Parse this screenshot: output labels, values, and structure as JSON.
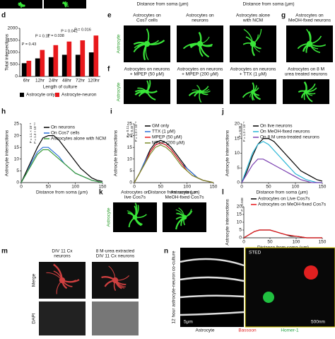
{
  "top_strip": {
    "x_labels": [
      "Distance from soma (μm)",
      "Distance from soma (μm)"
    ]
  },
  "chart_data": [
    {
      "type": "bar",
      "panel_label": "d",
      "ylabel": "Total intersections",
      "xlabel": "Length of culture",
      "categories": [
        "6hr",
        "12hr",
        "24hr",
        "48hr",
        "72hr",
        "120hr"
      ],
      "series": [
        {
          "name": "Astrocyte only",
          "color": "#000000",
          "values": [
            550,
            750,
            800,
            900,
            900,
            1000
          ]
        },
        {
          "name": "Astrocyte-neuron",
          "color": "#e8191c",
          "values": [
            650,
            1100,
            1300,
            1450,
            1500,
            1700
          ]
        }
      ],
      "ylim": [
        0,
        2000
      ],
      "yticks": [
        0,
        500,
        1000,
        1500,
        2000
      ],
      "annotations": [
        "P = 0.43",
        "P = 0.11",
        "P = 0.038",
        "P = 0.042",
        "P = 0.016"
      ]
    },
    {
      "type": "line",
      "panel_label": "h",
      "ylabel": "Astrocyte intersections",
      "xlabel": "Distance from soma (μm)",
      "x": [
        0,
        10,
        20,
        30,
        40,
        50,
        60,
        70,
        80,
        90,
        100,
        110,
        120,
        130,
        140,
        150
      ],
      "series": [
        {
          "name": "On neurons",
          "color": "#000000",
          "values": [
            0,
            5,
            10,
            15,
            19,
            20,
            20,
            18,
            15,
            12,
            9,
            6,
            4,
            2,
            1,
            0.5
          ]
        },
        {
          "name": "On Cos7 cells",
          "color": "#2b6fd6",
          "values": [
            0,
            4,
            9,
            13,
            15,
            15,
            13,
            11,
            8,
            6,
            4,
            3,
            2,
            1,
            0.5,
            0
          ]
        },
        {
          "name": "Astrocytes alone with NCM",
          "color": "#3a9c3a",
          "values": [
            0,
            4,
            8,
            12,
            14,
            14,
            12,
            10,
            8,
            6,
            4,
            3,
            2,
            1,
            0.5,
            0
          ]
        }
      ],
      "xlim": [
        0,
        150
      ],
      "xticks": [
        0,
        50,
        100,
        150
      ],
      "ylim": [
        0,
        25
      ],
      "yticks": [
        0,
        5,
        10,
        15,
        20,
        25
      ],
      "annotations": [
        "P = 1.3 × 10⁻¹¹",
        "P = 1.1 × 10⁻⁸"
      ]
    },
    {
      "type": "line",
      "panel_label": "i",
      "ylabel": "Astrocyte intersections",
      "xlabel": "Distance from soma (μm)",
      "x": [
        0,
        10,
        20,
        30,
        40,
        50,
        60,
        70,
        80,
        90,
        100,
        110,
        120,
        130,
        140,
        150
      ],
      "series": [
        {
          "name": "GM only",
          "color": "#000000",
          "values": [
            0,
            4,
            9,
            14,
            17,
            18,
            17,
            15,
            12,
            9,
            6,
            4,
            2,
            1,
            0.5,
            0
          ]
        },
        {
          "name": "TTX (1 μM)",
          "color": "#2b6fd6",
          "values": [
            0,
            4,
            9,
            13,
            16,
            17,
            16,
            14,
            11,
            8,
            6,
            4,
            2,
            1,
            0.5,
            0
          ]
        },
        {
          "name": "MPEP (50 μM)",
          "color": "#e8191c",
          "values": [
            0,
            4,
            8,
            13,
            16,
            17,
            16,
            14,
            11,
            8,
            5,
            3,
            2,
            1,
            0.5,
            0
          ]
        },
        {
          "name": "MPEP (200 μM)",
          "color": "#7a8c2a",
          "values": [
            0,
            4,
            8,
            12,
            15,
            16,
            15,
            13,
            10,
            7,
            5,
            3,
            2,
            1,
            0.5,
            0
          ]
        }
      ],
      "xlim": [
        0,
        150
      ],
      "xticks": [
        0,
        50,
        100,
        150
      ],
      "ylim": [
        0,
        25
      ],
      "yticks": [
        0,
        5,
        10,
        15,
        20,
        25
      ],
      "annotations": [
        "P = 1.3 × 10⁻⁸",
        "P = 0.45",
        "P = 0.11"
      ]
    },
    {
      "type": "line",
      "panel_label": "j",
      "ylabel": "Astrocyte intersections",
      "xlabel": "Distance from soma (μm)",
      "x": [
        0,
        10,
        20,
        30,
        40,
        50,
        60,
        70,
        80,
        90,
        100,
        110,
        120,
        130,
        140,
        150
      ],
      "series": [
        {
          "name": "On live neurons",
          "color": "#000000",
          "values": [
            0,
            4,
            9,
            13,
            15,
            15,
            14,
            12,
            10,
            8,
            6,
            4,
            3,
            2,
            1,
            0.5
          ]
        },
        {
          "name": "On MeOH-fixed neurons",
          "color": "#29b6d6",
          "values": [
            0,
            5,
            10,
            13,
            14,
            13,
            11,
            9,
            7,
            5,
            3,
            2,
            1,
            0.5,
            0,
            0
          ]
        },
        {
          "name": "On 8 M urea-treated neurons",
          "color": "#7a3fb0",
          "values": [
            0,
            3,
            6,
            8,
            8,
            7,
            6,
            5,
            4,
            3,
            2,
            1,
            0.5,
            0,
            0,
            0
          ]
        }
      ],
      "xlim": [
        0,
        150
      ],
      "xticks": [
        0,
        50,
        100,
        150
      ],
      "ylim": [
        0,
        20
      ],
      "yticks": [
        0,
        5,
        10,
        15,
        20
      ],
      "annotations": [
        "P = 1.3 × 10⁻⁵",
        "P = 0.06"
      ]
    },
    {
      "type": "line",
      "panel_label": "l",
      "ylabel": "Astrocyte intersections",
      "xlabel": "Distance from soma (μm)",
      "x": [
        0,
        10,
        20,
        30,
        40,
        50,
        60,
        70,
        80,
        90,
        100,
        110,
        120,
        130,
        140,
        150
      ],
      "series": [
        {
          "name": "Astrocytes on Live Cos7s",
          "color": "#000000",
          "values": [
            0,
            2,
            4,
            5,
            5,
            5,
            4,
            3,
            2,
            1,
            1,
            0.5,
            0,
            0,
            0,
            0
          ]
        },
        {
          "name": "Astrocytes on MeOH-fixed Cos7s",
          "color": "#e8191c",
          "values": [
            0,
            2,
            4,
            5,
            5,
            5,
            4,
            3,
            2,
            1.5,
            1,
            0.5,
            0,
            0,
            0,
            0
          ]
        }
      ],
      "xlim": [
        0,
        150
      ],
      "xticks": [
        0,
        50,
        100,
        150
      ],
      "ylim": [
        0,
        20
      ],
      "yticks": [
        0,
        5,
        10,
        15,
        20
      ],
      "annotations": [
        "P = 0.938"
      ]
    }
  ],
  "images": {
    "e": {
      "label": "e",
      "captions": [
        [
          "Astrocytes on",
          "Cos7 cells"
        ],
        [
          "Astrocytes on",
          "neurons"
        ],
        [
          "Astrocytes alone",
          "with NCM"
        ]
      ],
      "side_label": "Astrocyte"
    },
    "g": {
      "label": "g",
      "captions": [
        [
          "Astrocytes on",
          "MeOH-fixed neurons"
        ]
      ]
    },
    "f": {
      "label": "f",
      "captions": [
        [
          "Astrocytes on neurons",
          "+ MPEP (50 μM)"
        ],
        [
          "Astrocytes on neurons",
          "+ MPEP (200 μM)"
        ],
        [
          "Astrocytes on neurons",
          "+ TTX (1 μM)"
        ],
        [
          "Astrocytes on 8 M",
          "urea treated neurons"
        ]
      ],
      "side_label": "Astrocyte"
    },
    "k": {
      "label": "k",
      "captions": [
        [
          "Astrocytes on",
          "live Cos7s"
        ],
        [
          "Astrocytes on",
          "MeOH-fixed Cos7s"
        ]
      ],
      "side_label": "Astrocyte"
    },
    "m": {
      "label": "m",
      "captions": [
        [
          "DIV 11 Cx",
          "neurons"
        ],
        [
          "8 M-urea extracted",
          "DIV 11 Cx neurons"
        ]
      ],
      "side_labels": [
        "Merge",
        "DAPI"
      ]
    },
    "n": {
      "label": "n",
      "side_label": "12 hour astrocyte-neuron co-culture",
      "sted": "STED",
      "scales": [
        "5μm",
        "500nm"
      ],
      "legend": [
        "Astrocyte",
        "Bassoon",
        "Homer-1"
      ]
    }
  }
}
